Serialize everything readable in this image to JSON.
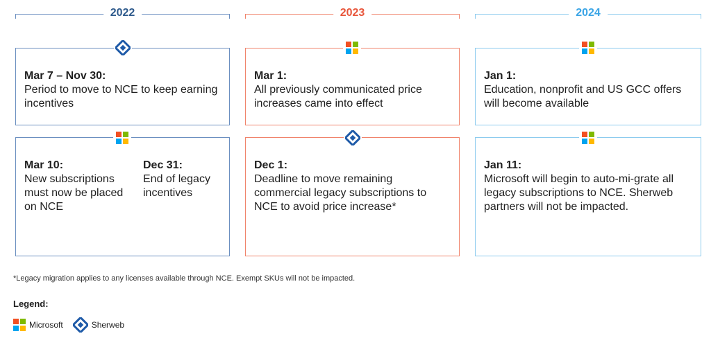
{
  "years": [
    {
      "label": "2022",
      "color": "#2e5a8c"
    },
    {
      "label": "2023",
      "color": "#e8553a"
    },
    {
      "label": "2024",
      "color": "#3ba5e6"
    }
  ],
  "colors": {
    "col2022": "#6b8fc0",
    "col2023": "#f0836b",
    "col2024": "#8ccbee",
    "sherweb": "#1e5aa8"
  },
  "cards": {
    "c2022_top": {
      "icon": "sherweb-icon",
      "date": "Mar 7 – Nov 30:",
      "text": "Period to move to NCE to keep earning incentives"
    },
    "c2022_bottom": {
      "icon": "microsoft-icon",
      "left": {
        "date": "Mar 10:",
        "text": "New subscriptions must now be placed on NCE"
      },
      "right": {
        "date": "Dec 31:",
        "text": "End of legacy incentives"
      }
    },
    "c2023_top": {
      "icon": "microsoft-icon",
      "date": "Mar 1:",
      "text": "All previously communicated price increases came into effect"
    },
    "c2023_bottom": {
      "icon": "sherweb-icon",
      "date": "Dec 1:",
      "text": "Deadline to move remaining commercial legacy subscriptions to NCE to avoid price increase*"
    },
    "c2024_top": {
      "icon": "microsoft-icon",
      "date": "Jan 1:",
      "text": "Education, nonprofit and US GCC offers will become available"
    },
    "c2024_bottom": {
      "icon": "microsoft-icon",
      "date": "Jan 11:",
      "text": "Microsoft will begin to auto-mi-grate all legacy subscriptions to NCE. Sherweb partners will not be impacted."
    }
  },
  "footnote": "*Legacy migration applies to any licenses available through NCE. Exempt SKUs will not be impacted.",
  "legend": {
    "title": "Legend:",
    "microsoft": "Microsoft",
    "sherweb": "Sherweb"
  }
}
